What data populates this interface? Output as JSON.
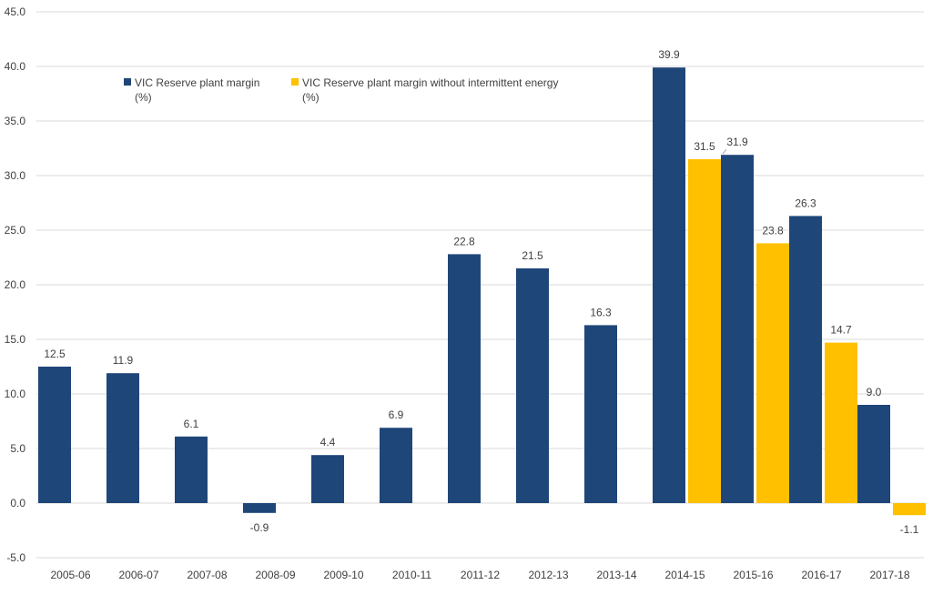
{
  "chart_data": {
    "type": "bar",
    "categories": [
      "2005-06",
      "2006-07",
      "2007-08",
      "2008-09",
      "2009-10",
      "2010-11",
      "2011-12",
      "2012-13",
      "2013-14",
      "2014-15",
      "2015-16",
      "2016-17",
      "2017-18"
    ],
    "series": [
      {
        "name_lines": [
          "VIC Reserve plant margin",
          "(%)"
        ],
        "color": "#1f4679",
        "values": [
          12.5,
          11.9,
          6.1,
          -0.9,
          4.4,
          6.9,
          22.8,
          21.5,
          16.3,
          39.9,
          31.9,
          26.3,
          9.0
        ],
        "labels": [
          "12.5",
          "11.9",
          "6.1",
          "-0.9",
          "4.4",
          "6.9",
          "22.8",
          "21.5",
          "16.3",
          "39.9",
          "31.9",
          "26.3",
          "9.0"
        ]
      },
      {
        "name_lines": [
          "VIC Reserve plant margin without intermittent energy",
          "(%)"
        ],
        "color": "#ffc000",
        "values": [
          null,
          null,
          null,
          null,
          null,
          null,
          null,
          null,
          null,
          31.5,
          23.8,
          14.7,
          -1.1
        ],
        "labels": [
          "",
          "",
          "",
          "",
          "",
          "",
          "",
          "",
          "",
          "31.5",
          "23.8",
          "14.7",
          "-1.1"
        ]
      }
    ],
    "yticks": [
      "-5.0",
      "0.0",
      "5.0",
      "10.0",
      "15.0",
      "20.0",
      "25.0",
      "30.0",
      "35.0",
      "40.0",
      "45.0"
    ],
    "ylim": [
      -5,
      45
    ],
    "grid": true,
    "legend_position": "top-left"
  }
}
